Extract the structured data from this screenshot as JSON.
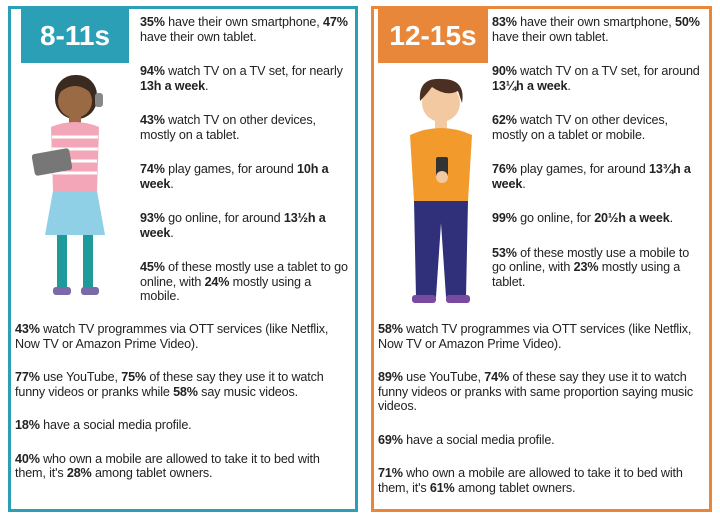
{
  "panels": [
    {
      "label": "8-11s",
      "top": [
        {
          "parts": [
            {
              "text": "35%",
              "bold": true
            },
            {
              "text": " have their own smartphone, "
            },
            {
              "text": "47%",
              "bold": true
            },
            {
              "text": " have their own tablet."
            }
          ]
        },
        {
          "parts": [
            {
              "text": "94%",
              "bold": true
            },
            {
              "text": " watch TV on a TV set, for nearly "
            },
            {
              "text": "13h a week",
              "bold": true
            },
            {
              "text": "."
            }
          ]
        },
        {
          "parts": [
            {
              "text": "43%",
              "bold": true
            },
            {
              "text": " watch TV on other devices, mostly on a tablet."
            }
          ]
        },
        {
          "parts": [
            {
              "text": "74%",
              "bold": true
            },
            {
              "text": " play games, for around "
            },
            {
              "text": "10h a week",
              "bold": true
            },
            {
              "text": "."
            }
          ]
        },
        {
          "parts": [
            {
              "text": "93%",
              "bold": true
            },
            {
              "text": " go online, for around "
            },
            {
              "text": "13½h a week",
              "bold": true
            },
            {
              "text": "."
            }
          ]
        },
        {
          "parts": [
            {
              "text": "45%",
              "bold": true
            },
            {
              "text": " of these mostly use a tablet to go online, with "
            },
            {
              "text": "24%",
              "bold": true
            },
            {
              "text": " mostly using a mobile."
            }
          ]
        }
      ],
      "bottom": [
        {
          "parts": [
            {
              "text": "43%",
              "bold": true
            },
            {
              "text": " watch TV programmes via OTT services (like Netflix, Now TV or Amazon Prime Video)."
            }
          ]
        },
        {
          "parts": [
            {
              "text": "77%",
              "bold": true
            },
            {
              "text": " use YouTube, "
            },
            {
              "text": "75%",
              "bold": true
            },
            {
              "text": " of these say they use it to watch funny videos or pranks while "
            },
            {
              "text": "58%",
              "bold": true
            },
            {
              "text": " say music videos."
            }
          ]
        },
        {
          "parts": [
            {
              "text": "18%",
              "bold": true
            },
            {
              "text": " have a social media profile."
            }
          ]
        },
        {
          "parts": [
            {
              "text": "40%",
              "bold": true
            },
            {
              "text": " who own a mobile are allowed to take it to bed with them, it's "
            },
            {
              "text": "28%",
              "bold": true
            },
            {
              "text": " among tablet owners."
            }
          ]
        }
      ]
    },
    {
      "label": "12-15s",
      "top": [
        {
          "parts": [
            {
              "text": "83%",
              "bold": true
            },
            {
              "text": " have their own smartphone, "
            },
            {
              "text": "50%",
              "bold": true
            },
            {
              "text": " have their own tablet."
            }
          ]
        },
        {
          "parts": [
            {
              "text": "90%",
              "bold": true
            },
            {
              "text": " watch TV on a TV set, for around "
            },
            {
              "text": "13¼h a week",
              "bold": true
            },
            {
              "text": "."
            }
          ]
        },
        {
          "parts": [
            {
              "text": "62%",
              "bold": true
            },
            {
              "text": " watch TV on other devices, mostly on a tablet or mobile."
            }
          ]
        },
        {
          "parts": [
            {
              "text": "76%",
              "bold": true
            },
            {
              "text": " play games, for around "
            },
            {
              "text": "13¾h a week",
              "bold": true
            },
            {
              "text": "."
            }
          ]
        },
        {
          "parts": [
            {
              "text": "99%",
              "bold": true
            },
            {
              "text": " go online, for "
            },
            {
              "text": "20½h a week",
              "bold": true
            },
            {
              "text": "."
            }
          ]
        },
        {
          "parts": [
            {
              "text": "53%",
              "bold": true
            },
            {
              "text": " of these mostly use a mobile to go online, with "
            },
            {
              "text": "23%",
              "bold": true
            },
            {
              "text": " mostly using a tablet."
            }
          ]
        }
      ],
      "bottom": [
        {
          "parts": [
            {
              "text": "58%",
              "bold": true
            },
            {
              "text": " watch TV programmes via OTT services (like Netflix, Now TV or Amazon Prime Video)."
            }
          ]
        },
        {
          "parts": [
            {
              "text": "89%",
              "bold": true
            },
            {
              "text": " use YouTube, "
            },
            {
              "text": "74%",
              "bold": true
            },
            {
              "text": " of these say they use it to watch funny videos or pranks with same proportion saying music videos."
            }
          ]
        },
        {
          "parts": [
            {
              "text": "69%",
              "bold": true
            },
            {
              "text": " have a social media profile."
            }
          ]
        },
        {
          "parts": [
            {
              "text": "71%",
              "bold": true
            },
            {
              "text": " who own a mobile are allowed to take it to bed with them, it's "
            },
            {
              "text": "61%",
              "bold": true
            },
            {
              "text": " among tablet owners."
            }
          ]
        }
      ]
    }
  ]
}
